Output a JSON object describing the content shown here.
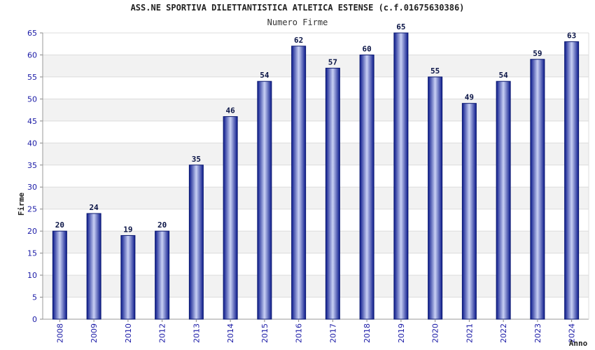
{
  "chart_data": {
    "type": "bar",
    "title": "ASS.NE SPORTIVA DILETTANTISTICA ATLETICA ESTENSE (c.f.01675630386)",
    "subtitle": "Numero Firme",
    "xlabel": "Anno",
    "ylabel": "Firme",
    "ylim": [
      0,
      65
    ],
    "yticks": [
      0,
      5,
      10,
      15,
      20,
      25,
      30,
      35,
      40,
      45,
      50,
      55,
      60,
      65
    ],
    "grid": true,
    "categories": [
      "2008",
      "2009",
      "2010",
      "2012",
      "2013",
      "2014",
      "2015",
      "2016",
      "2017",
      "2018",
      "2019",
      "2020",
      "2021",
      "2022",
      "2023",
      "2024"
    ],
    "values": [
      20,
      24,
      19,
      20,
      35,
      46,
      54,
      62,
      57,
      60,
      65,
      55,
      49,
      54,
      59,
      63
    ],
    "colors": {
      "bar_dark": "#0c1a8c",
      "bar_light": "#c8d0f4",
      "bar_edge": "#0a1870",
      "band": "#f2f2f2"
    }
  }
}
